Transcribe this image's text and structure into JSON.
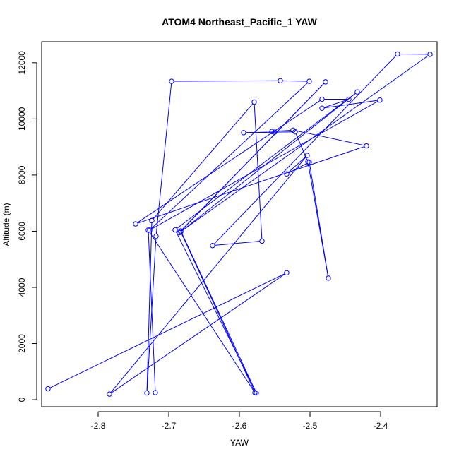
{
  "chart_data": {
    "type": "line",
    "title": "ATOM4 Northeast_Pacific_1 YAW",
    "xlabel": "YAW",
    "ylabel": "Altitude (m)",
    "xlim": [
      -2.88,
      -2.32
    ],
    "ylim": [
      -250,
      12750
    ],
    "xticks": [
      -2.8,
      -2.7,
      -2.6,
      -2.5,
      -2.4
    ],
    "xtick_labels": [
      "-2.8",
      "-2.7",
      "-2.6",
      "-2.5",
      "-2.4"
    ],
    "yticks": [
      0,
      2000,
      4000,
      6000,
      8000,
      10000,
      12000
    ],
    "ytick_labels": [
      "0",
      "2000",
      "4000",
      "6000",
      "8000",
      "10000",
      "12000"
    ],
    "grid": false,
    "color": "#0000ff",
    "marker": "open-circle",
    "series": [
      {
        "x": [
          -2.871,
          -2.533,
          -2.784,
          -2.504,
          -2.533,
          -2.501,
          -2.474,
          -2.503,
          -2.521,
          -2.594,
          -2.55,
          -2.554,
          -2.524,
          -2.42,
          -2.747,
          -2.483,
          -2.445,
          -2.483,
          -2.401,
          -2.727,
          -2.501,
          -2.542,
          -2.696,
          -2.718,
          -2.731,
          -2.724,
          -2.579,
          -2.568,
          -2.638,
          -2.376,
          -2.33,
          -2.685,
          -2.478,
          -2.683,
          -2.576,
          -2.691,
          -2.433,
          -2.683,
          -2.578,
          -2.729,
          -2.719
        ],
        "y": [
          390,
          4520,
          200,
          8700,
          8040,
          8460,
          4330,
          8470,
          9540,
          9510,
          9530,
          9550,
          9600,
          9040,
          6260,
          10700,
          10700,
          10380,
          10670,
          6040,
          11340,
          11360,
          11340,
          5820,
          240,
          6380,
          10600,
          5650,
          5490,
          12310,
          12300,
          5950,
          11320,
          6010,
          240,
          6050,
          10960,
          5980,
          250,
          6040,
          250
        ]
      }
    ]
  }
}
